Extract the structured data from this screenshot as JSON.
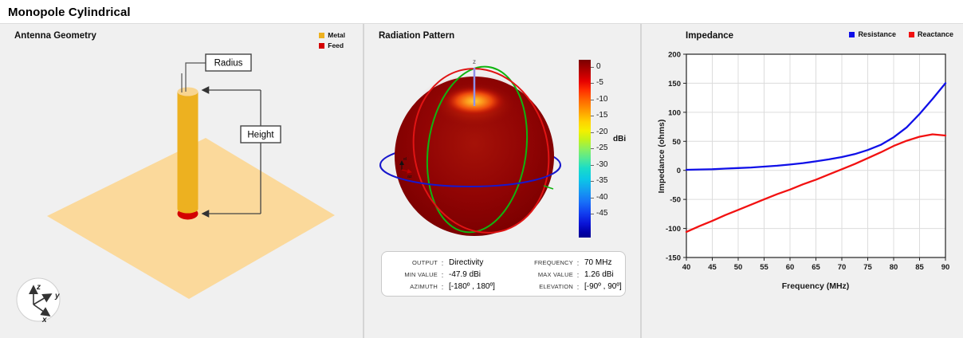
{
  "window": {
    "title": "Monopole Cylindrical"
  },
  "geometry_panel": {
    "title": "Antenna Geometry",
    "legend": [
      {
        "label": "Metal",
        "color": "#EDB120"
      },
      {
        "label": "Feed",
        "color": "#D40000"
      }
    ],
    "plane_color": "#FBD99B",
    "labels": {
      "radius": "Radius",
      "height": "Height"
    },
    "triad": {
      "x": "x",
      "y": "y",
      "z": "z"
    }
  },
  "radiation_panel": {
    "title": "Radiation Pattern",
    "z_label": "z",
    "mini_axes": {
      "az": "az",
      "el": "el"
    },
    "colorbar": {
      "unit": "dBi",
      "ticks": [
        0,
        -5,
        -10,
        -15,
        -20,
        -25,
        -30,
        -35,
        -40,
        -45
      ]
    },
    "info": [
      {
        "label": "OUTPUT",
        "value": "Directivity"
      },
      {
        "label": "FREQUENCY",
        "value": "70 MHz"
      },
      {
        "label": "MIN VALUE",
        "value": "-47.9 dBi"
      },
      {
        "label": "MAX VALUE",
        "value": "1.26 dBi"
      },
      {
        "label": "AZIMUTH",
        "value": "[-180º , 180º]"
      },
      {
        "label": "ELEVATION",
        "value": "[-90º , 90º]"
      }
    ]
  },
  "impedance_panel": {
    "title": "Impedance",
    "legend": [
      {
        "label": "Resistance",
        "color": "#1010E8"
      },
      {
        "label": "Reactance",
        "color": "#F21111"
      }
    ]
  },
  "chart_data": {
    "type": "line",
    "title": "Impedance",
    "xlabel": "Frequency (MHz)",
    "ylabel": "Impedance (ohms)",
    "xlim": [
      40,
      90
    ],
    "ylim": [
      -150,
      200
    ],
    "xticks": [
      40,
      45,
      50,
      55,
      60,
      65,
      70,
      75,
      80,
      85,
      90
    ],
    "yticks": [
      -150,
      -100,
      -50,
      0,
      50,
      100,
      150,
      200
    ],
    "grid": true,
    "legend_position": "top-right",
    "x": [
      40,
      42.5,
      45,
      47.5,
      50,
      52.5,
      55,
      57.5,
      60,
      62.5,
      65,
      67.5,
      70,
      72.5,
      75,
      77.5,
      80,
      82.5,
      85,
      87.5,
      90
    ],
    "series": [
      {
        "name": "Resistance",
        "color": "#1010E8",
        "values": [
          1,
          1.5,
          2,
          3,
          4,
          5,
          6.5,
          8,
          10,
          12.5,
          15.5,
          19,
          23,
          28,
          35,
          44,
          57,
          74,
          97,
          123,
          150
        ]
      },
      {
        "name": "Reactance",
        "color": "#F21111",
        "values": [
          -106,
          -96,
          -87,
          -77,
          -68,
          -59,
          -50,
          -41,
          -33,
          -24,
          -16,
          -7,
          2,
          11,
          21,
          31,
          42,
          51,
          58,
          62,
          60
        ]
      }
    ]
  }
}
